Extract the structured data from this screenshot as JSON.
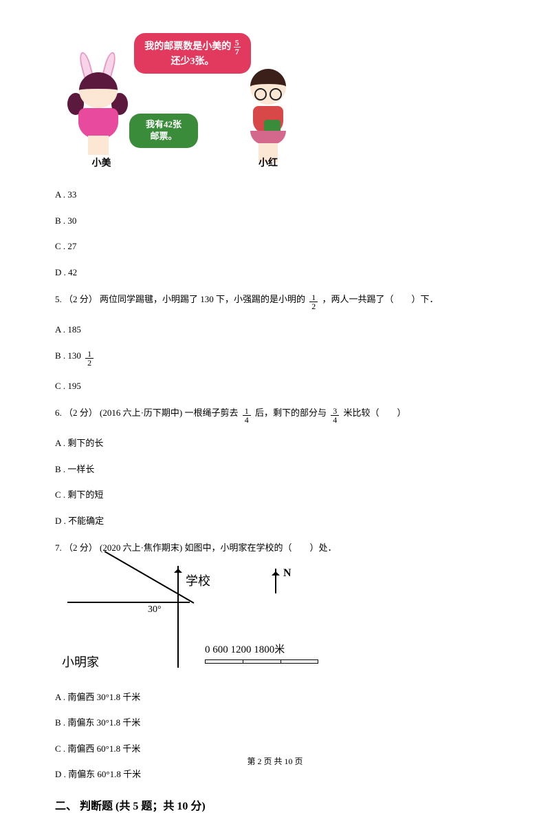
{
  "illustration": {
    "xiaomei_name": "小美",
    "xiaohong_name": "小红",
    "bubble_red_pre": "我的邮票数是小美的",
    "bubble_red_frac_num": "5",
    "bubble_red_frac_den": "7",
    "bubble_red_post": "还少3张。",
    "bubble_green_line1": "我有42张",
    "bubble_green_line2": "邮票。",
    "colors": {
      "bubble_red": "#e23a5f",
      "bubble_green": "#3a8c3a",
      "dress": "#e84b9e",
      "hair_dark": "#5b1a3d",
      "skin": "#fce6d4"
    }
  },
  "q4_options": {
    "a": "A . 33",
    "b": "B . 30",
    "c": "C . 27",
    "d": "D . 42"
  },
  "q5": {
    "stem_pre": "5. （2 分） 两位同学踢毽，小明踢了 130 下，小强踢的是小明的 ",
    "frac_num": "1",
    "frac_den": "2",
    "stem_post": " ，两人一共踢了（　　）下．",
    "opt_a": "A . 185",
    "opt_b_pre": "B . 130 ",
    "opt_b_num": "1",
    "opt_b_den": "2",
    "opt_c": "C . 195"
  },
  "q6": {
    "stem_pre": "6. （2 分） (2016 六上·历下期中) 一根绳子剪去 ",
    "f1_num": "1",
    "f1_den": "4",
    "stem_mid": " 后，剩下的部分与 ",
    "f2_num": "3",
    "f2_den": "4",
    "stem_post": " 米比较（　　）",
    "opt_a": "A . 剩下的长",
    "opt_b": "B . 一样长",
    "opt_c": "C . 剩下的短",
    "opt_d": "D . 不能确定"
  },
  "q7": {
    "stem": "7. （2 分） (2020 六上·焦作期末) 如图中，小明家在学校的（　　）处．",
    "angle": "30°",
    "school": "学校",
    "home": "小明家",
    "north": "N",
    "scale_text": "0  600 1200 1800米",
    "opt_a": "A . 南偏西 30°1.8 千米",
    "opt_b": "B . 南偏东 30°1.8 千米",
    "opt_c": "C . 南偏西 60°1.8 千米",
    "opt_d": "D . 南偏东 60°1.8 千米"
  },
  "section2": "二、 判断题 (共 5 题；共 10 分)",
  "footer": "第 2 页 共 10 页"
}
